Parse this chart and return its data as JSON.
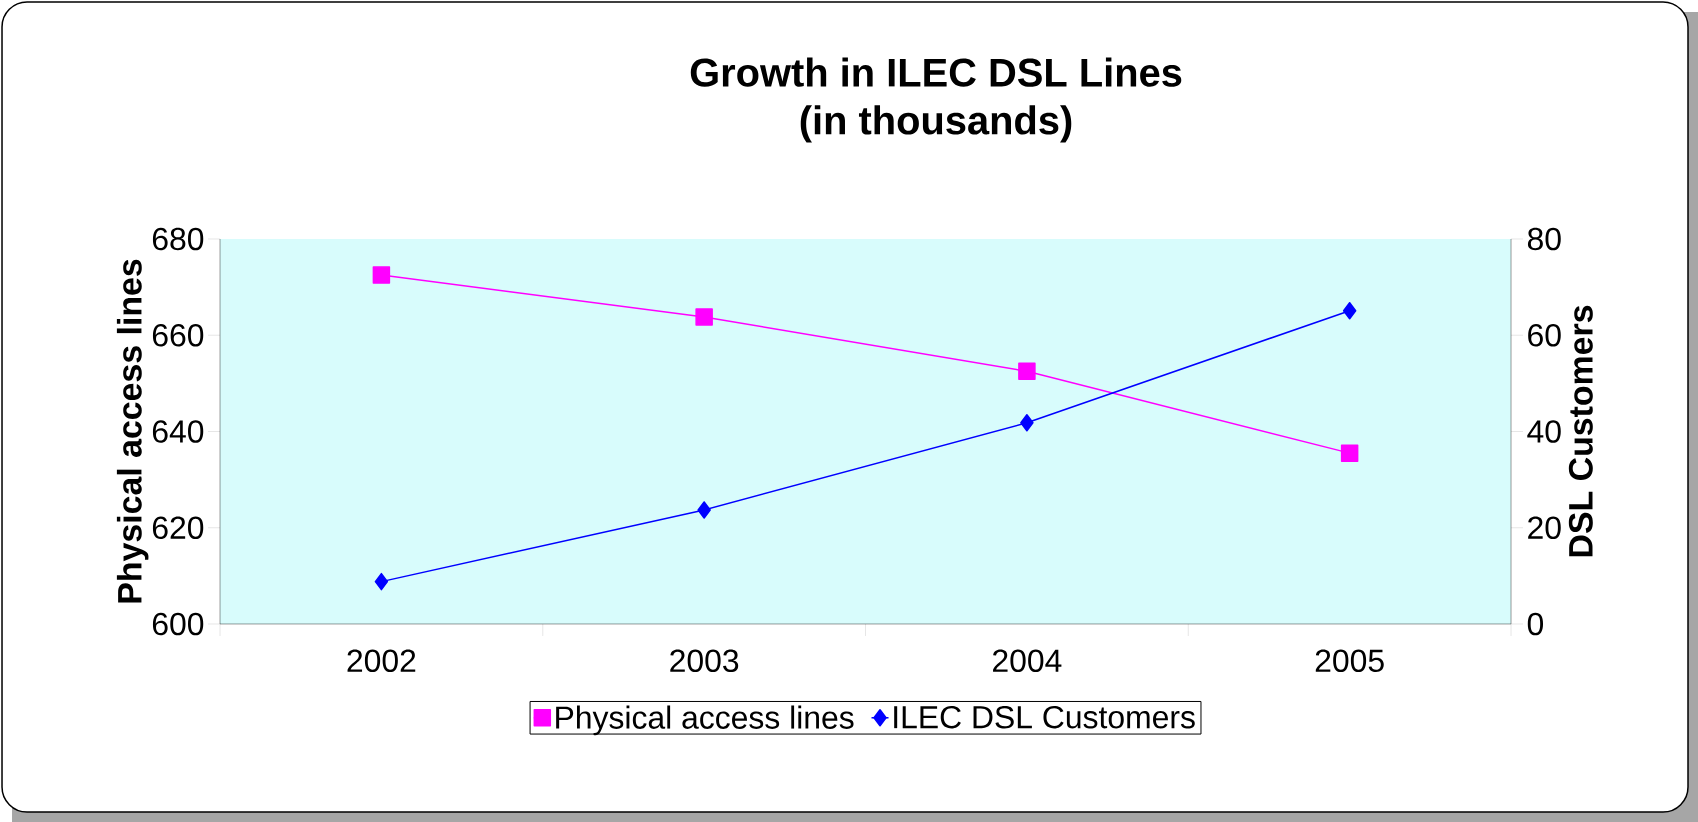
{
  "chart_data": {
    "type": "line",
    "title": "Growth in ILEC DSL Lines",
    "subtitle": "(in thousands)",
    "categories": [
      "2002",
      "2003",
      "2004",
      "2005"
    ],
    "series": [
      {
        "name": "Physical access lines",
        "color": "#ff00ff",
        "marker": "square",
        "values": [
          672.5,
          663.8,
          652.5,
          635.5
        ]
      },
      {
        "name": "ILEC DSL Customers",
        "color": "#0000ff",
        "marker": "diamond",
        "axis": "y2",
        "values": [
          8.8,
          23.7,
          41.8,
          65.1
        ]
      }
    ],
    "ylabel": "Physical access lines",
    "y2label": "DSL Customers",
    "ylim": [
      600,
      680
    ],
    "yticks": [
      600,
      620,
      640,
      660,
      680
    ],
    "y2lim": [
      0,
      80
    ],
    "y2ticks": [
      0,
      20,
      40,
      60,
      80
    ],
    "legend": "bottom"
  }
}
